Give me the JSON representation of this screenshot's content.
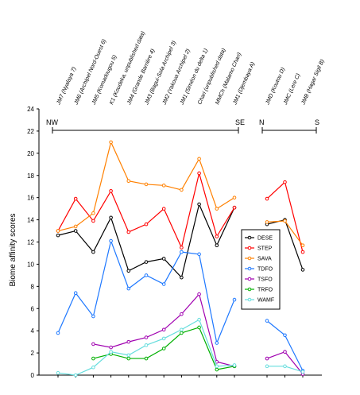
{
  "chart_data": {
    "type": "line",
    "ylabel": "Biome affinity scores",
    "ylim": [
      0,
      24
    ],
    "yticks": [
      0,
      2,
      4,
      6,
      8,
      10,
      12,
      14,
      16,
      18,
      20,
      22,
      24
    ],
    "legend_position": "center-right",
    "panels": [
      {
        "id": "left",
        "direction_labels": [
          "NW",
          "SE"
        ],
        "sites": [
          "JM7 (Nyalaya 7)",
          "JM6 (Archipel Nord-Ouest 6)",
          "JM5 (Komadougou 5)",
          "K1 (Koudeka, unpublished data)",
          "JM4 (Grande Barrière 4)",
          "JM3 (Bagui-Sola Archipel 3)",
          "JM2 (Yakoua Archipel 2)",
          "JM1 (Siméon du delta 1)",
          "Chari (unpublished data)",
          "MMCh (Malamo Chari)",
          "JM1 (Djembaya A)"
        ],
        "series": [
          {
            "name": "DESE",
            "color": "#000000",
            "values": [
              12.6,
              13.0,
              11.1,
              14.2,
              9.4,
              10.2,
              10.5,
              8.8,
              15.4,
              11.7,
              15.1
            ]
          },
          {
            "name": "STEP",
            "color": "#ff0000",
            "values": [
              13.0,
              15.9,
              13.9,
              16.6,
              12.9,
              13.6,
              15.0,
              11.5,
              18.2,
              12.5,
              15.1
            ]
          },
          {
            "name": "SAVA",
            "color": "#ff8000",
            "values": [
              13.0,
              13.4,
              14.6,
              21.0,
              17.5,
              17.2,
              17.1,
              16.7,
              19.5,
              15.0,
              16.0
            ]
          },
          {
            "name": "TDFO",
            "color": "#1e78ff",
            "values": [
              3.8,
              7.4,
              5.3,
              12.1,
              7.8,
              9.0,
              8.2,
              11.1,
              10.9,
              2.9,
              6.8
            ]
          },
          {
            "name": "TSFO",
            "color": "#a000b0",
            "values": [
              null,
              null,
              2.8,
              2.5,
              3.0,
              3.4,
              4.1,
              5.5,
              7.3,
              1.2,
              0.8
            ]
          },
          {
            "name": "TRFO",
            "color": "#00b000",
            "values": [
              null,
              null,
              1.5,
              1.9,
              1.5,
              1.5,
              2.4,
              3.8,
              4.3,
              0.5,
              0.8
            ]
          },
          {
            "name": "WAMF",
            "color": "#66dddd",
            "values": [
              0.2,
              0.0,
              0.7,
              2.1,
              1.8,
              2.7,
              3.3,
              4.1,
              5.0,
              0.8,
              0.9
            ]
          }
        ]
      },
      {
        "id": "right",
        "direction_labels": [
          "N",
          "S"
        ],
        "sites": [
          "JMD (Koutou D)",
          "JMC (Lere C)",
          "JMB (Hagar Sigil B)"
        ],
        "series": [
          {
            "name": "DESE",
            "color": "#000000",
            "values": [
              13.6,
              14.0,
              9.5
            ]
          },
          {
            "name": "STEP",
            "color": "#ff0000",
            "values": [
              15.9,
              17.4,
              11.1
            ]
          },
          {
            "name": "SAVA",
            "color": "#ff8000",
            "values": [
              13.8,
              13.9,
              11.7
            ]
          },
          {
            "name": "TDFO",
            "color": "#1e78ff",
            "values": [
              4.9,
              3.6,
              0.4
            ]
          },
          {
            "name": "TSFO",
            "color": "#a000b0",
            "values": [
              1.5,
              2.1,
              0.1
            ]
          },
          {
            "name": "TRFO",
            "color": "#00b000",
            "values": [
              null,
              null,
              null
            ]
          },
          {
            "name": "WAMF",
            "color": "#66dddd",
            "values": [
              0.8,
              0.8,
              0.3
            ]
          }
        ]
      }
    ]
  }
}
